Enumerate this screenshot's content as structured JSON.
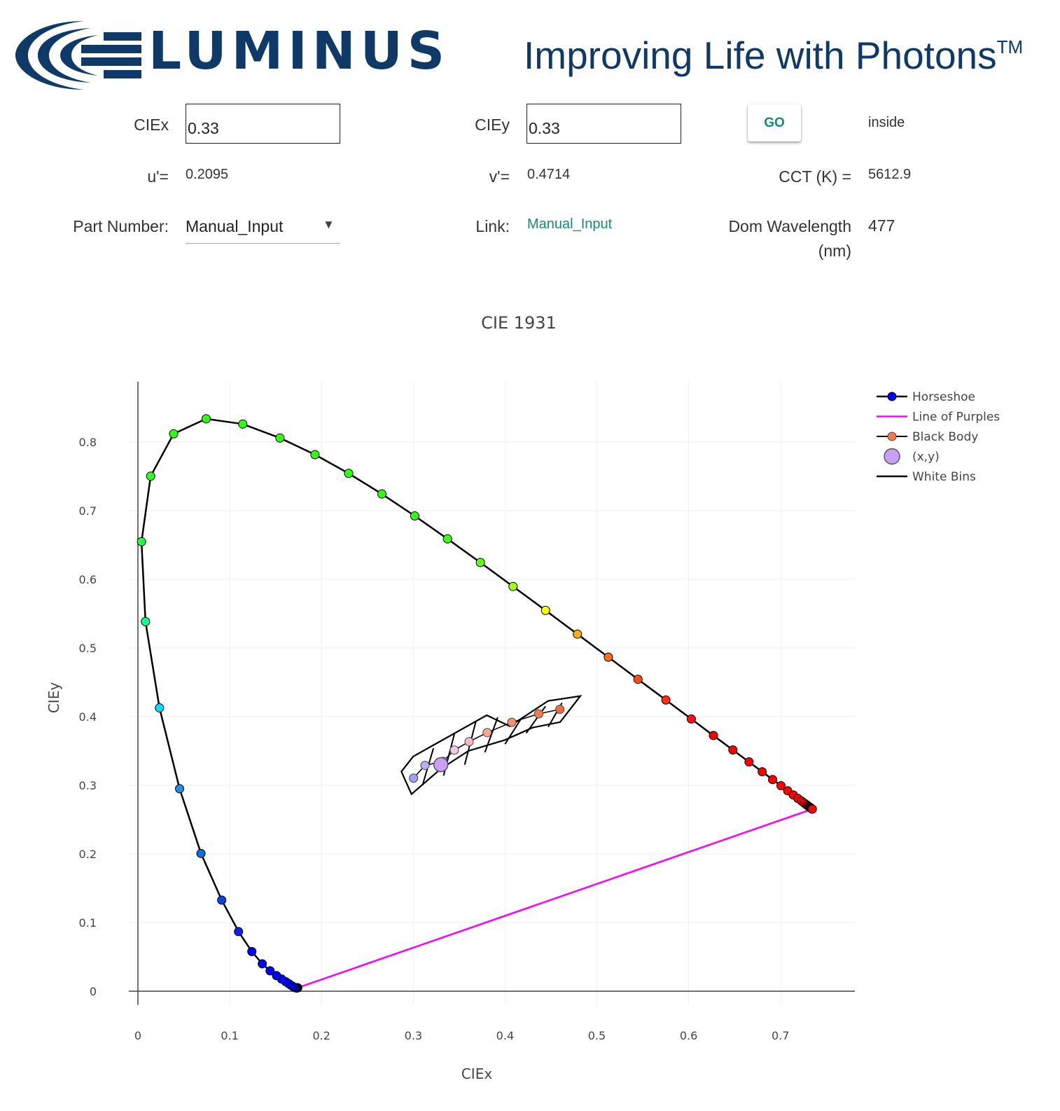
{
  "header": {
    "logo_text": "LUMINUS",
    "tagline": "Improving Life with Photons",
    "tagline_mark": "TM"
  },
  "form": {
    "ciex_label": "CIEx",
    "ciex_value": "0.33",
    "ciey_label": "CIEy",
    "ciey_value": "0.33",
    "go_label": "GO",
    "status": "inside",
    "u_label": "u'=",
    "u_value": "0.2095",
    "v_label": "v'=",
    "v_value": "0.4714",
    "cct_label": "CCT (K) =",
    "cct_value": "5612.9",
    "part_label": "Part Number:",
    "part_value": "Manual_Input",
    "link_label": "Link:",
    "link_value": "Manual_Input",
    "dom_label_1": "Dom Wavelength",
    "dom_label_2": "(nm)",
    "dom_value": "477"
  },
  "chart_data": {
    "type": "scatter",
    "title": "CIE 1931",
    "xlabel": "CIEx",
    "ylabel": "CIEy",
    "xlim": [
      -0.01,
      0.78
    ],
    "ylim": [
      -0.02,
      0.88
    ],
    "xticks": [
      0,
      0.1,
      0.2,
      0.3,
      0.4,
      0.5,
      0.6,
      0.7
    ],
    "yticks": [
      0,
      0.1,
      0.2,
      0.3,
      0.4,
      0.5,
      0.6,
      0.7,
      0.8
    ],
    "grid": true,
    "legend_position": "top-right",
    "legend": [
      "Horseshoe",
      "Line of Purples",
      "Black Body",
      "(x,y)",
      "White Bins"
    ],
    "horseshoe": {
      "name": "Horseshoe",
      "line_color": "#000000",
      "x": [
        0.1741,
        0.174,
        0.1738,
        0.1736,
        0.1733,
        0.173,
        0.1726,
        0.1721,
        0.1714,
        0.1703,
        0.1689,
        0.1669,
        0.1644,
        0.1611,
        0.1566,
        0.151,
        0.144,
        0.1355,
        0.1241,
        0.1096,
        0.0913,
        0.0687,
        0.0454,
        0.0235,
        0.0082,
        0.0039,
        0.0139,
        0.0389,
        0.0743,
        0.1142,
        0.1547,
        0.1929,
        0.2296,
        0.2658,
        0.3016,
        0.3373,
        0.3731,
        0.4087,
        0.4441,
        0.4788,
        0.5125,
        0.5448,
        0.5752,
        0.6029,
        0.627,
        0.6482,
        0.6658,
        0.6801,
        0.6915,
        0.7006,
        0.7079,
        0.714,
        0.719,
        0.723,
        0.726,
        0.7283,
        0.73,
        0.7311,
        0.732,
        0.7327,
        0.7334,
        0.734,
        0.7344,
        0.7346,
        0.7347
      ],
      "y": [
        0.005,
        0.005,
        0.0049,
        0.0049,
        0.0048,
        0.0048,
        0.0048,
        0.0048,
        0.0051,
        0.0058,
        0.0069,
        0.0086,
        0.0109,
        0.0138,
        0.0177,
        0.0227,
        0.0297,
        0.0399,
        0.0578,
        0.0868,
        0.1327,
        0.2007,
        0.295,
        0.4127,
        0.5384,
        0.6548,
        0.7502,
        0.812,
        0.8338,
        0.8262,
        0.8059,
        0.7816,
        0.7543,
        0.7243,
        0.6923,
        0.6589,
        0.6245,
        0.5896,
        0.5547,
        0.5202,
        0.4866,
        0.4544,
        0.4242,
        0.3965,
        0.3725,
        0.3514,
        0.334,
        0.3197,
        0.3083,
        0.2993,
        0.292,
        0.2859,
        0.2809,
        0.277,
        0.274,
        0.2717,
        0.27,
        0.2689,
        0.268,
        0.2673,
        0.2666,
        0.266,
        0.2656,
        0.2654,
        0.2653
      ],
      "colors": [
        "#0000ff",
        "#0000ff",
        "#0000ff",
        "#0000ff",
        "#0000ff",
        "#0000ff",
        "#0000ff",
        "#0000ff",
        "#0000ff",
        "#0000ff",
        "#0000ff",
        "#0000ff",
        "#0000ff",
        "#0000ff",
        "#0000ff",
        "#0000ff",
        "#0000ff",
        "#0000ff",
        "#0000ff",
        "#0a22f0",
        "#0a44e6",
        "#0b6ee6",
        "#1e8ff0",
        "#00e0ff",
        "#10ff90",
        "#20ff40",
        "#30ff20",
        "#30ff10",
        "#30ff10",
        "#30ff10",
        "#30ff10",
        "#30ff10",
        "#30ff10",
        "#30ff10",
        "#30ff10",
        "#40ff10",
        "#60ff10",
        "#a0ff10",
        "#ffff10",
        "#ffb010",
        "#ff7010",
        "#ff5010",
        "#ff3010",
        "#ff1010",
        "#ff0000",
        "#ff0000",
        "#ff0000",
        "#ff0000",
        "#ff0000",
        "#ff0000",
        "#ff0000",
        "#ff0000",
        "#ff0000",
        "#ff0000",
        "#ff0000",
        "#ff0000",
        "#ff0000",
        "#ff0000",
        "#ff0000",
        "#ff0000",
        "#ff0000",
        "#ff0000",
        "#ff0000",
        "#ff0000",
        "#ff0000"
      ]
    },
    "line_of_purples": {
      "name": "Line of Purples",
      "color": "#ff00ff",
      "x": [
        0.1741,
        0.7347
      ],
      "y": [
        0.005,
        0.2653
      ]
    },
    "black_body": {
      "name": "Black Body",
      "x": [
        0.3003,
        0.3127,
        0.3324,
        0.3447,
        0.3608,
        0.3805,
        0.4073,
        0.4367,
        0.4597
      ],
      "y": [
        0.3103,
        0.329,
        0.3348,
        0.3513,
        0.3635,
        0.3767,
        0.3917,
        0.4041,
        0.4106
      ],
      "colors": [
        "#a0a0f8",
        "#b8b0f4",
        "#d8c0f0",
        "#f0c8e8",
        "#f8b8c0",
        "#f8a890",
        "#f89070",
        "#f87a50",
        "#f86a40"
      ]
    },
    "point": {
      "name": "(x,y)",
      "x": 0.33,
      "y": 0.33,
      "color": "#c8a0f8"
    },
    "white_bins": {
      "name": "White Bins",
      "color": "#000000",
      "outline_x": [
        0.298,
        0.287,
        0.3,
        0.38,
        0.405,
        0.447,
        0.482,
        0.46,
        0.43,
        0.4,
        0.36,
        0.33
      ],
      "outline_y": [
        0.287,
        0.32,
        0.342,
        0.402,
        0.386,
        0.423,
        0.43,
        0.392,
        0.384,
        0.366,
        0.35,
        0.324
      ],
      "dividers_x": [
        [
          0.31,
          0.322
        ],
        [
          0.333,
          0.345
        ],
        [
          0.356,
          0.368
        ],
        [
          0.378,
          0.392
        ],
        [
          0.4,
          0.417
        ],
        [
          0.423,
          0.444
        ],
        [
          0.447,
          0.462
        ]
      ],
      "dividers_y": [
        [
          0.3,
          0.354
        ],
        [
          0.314,
          0.376
        ],
        [
          0.33,
          0.392
        ],
        [
          0.348,
          0.399
        ],
        [
          0.36,
          0.396
        ],
        [
          0.376,
          0.415
        ],
        [
          0.385,
          0.42
        ]
      ]
    }
  }
}
